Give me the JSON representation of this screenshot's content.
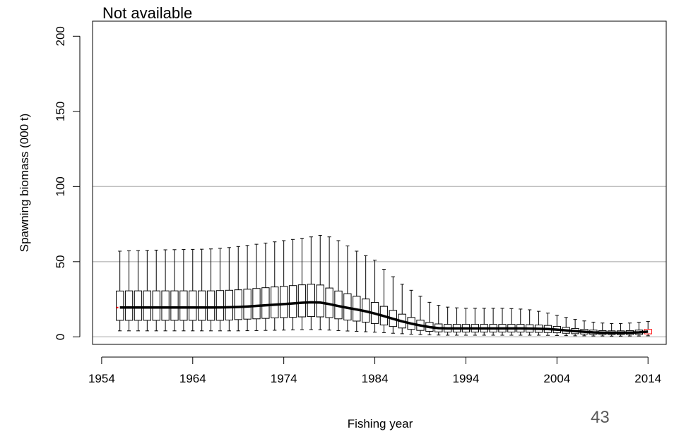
{
  "subtitle": "Not available",
  "page_number": "43",
  "chart_data": {
    "type": "box",
    "xlabel": "Fishing year",
    "ylabel": "Spawning biomass (000 t)",
    "xlim": [
      1953,
      2016
    ],
    "ylim": [
      -5,
      210
    ],
    "x_ticks": [
      1954,
      1964,
      1974,
      1984,
      1994,
      2004,
      2014
    ],
    "y_ticks": [
      0,
      50,
      100,
      150,
      200
    ],
    "reference_lines": [
      0,
      50,
      100
    ],
    "grid": false,
    "colors": {
      "median_line": "#000000",
      "box": "#000000",
      "reference_line": "#bebebe",
      "first_median_tick": "#ff0000",
      "last_box": "#ff0000"
    },
    "series": [
      {
        "x": [
          1956,
          1957,
          1958,
          1959,
          1960,
          1961,
          1962,
          1963,
          1964,
          1965,
          1966,
          1967,
          1968,
          1969,
          1970,
          1971,
          1972,
          1973,
          1974,
          1975,
          1976,
          1977,
          1978,
          1979,
          1980,
          1981,
          1982,
          1983,
          1984,
          1985,
          1986,
          1987,
          1988,
          1989,
          1990,
          1991,
          1992,
          1993,
          1994,
          1995,
          1996,
          1997,
          1998,
          1999,
          2000,
          2001,
          2002,
          2003,
          2004,
          2005,
          2006,
          2007,
          2008,
          2009,
          2010,
          2011,
          2012,
          2013,
          2014
        ],
        "median": [
          19.5,
          19.5,
          19.5,
          19.5,
          19.5,
          19.5,
          19.5,
          19.5,
          19.5,
          19.5,
          19.5,
          19.6,
          19.7,
          19.9,
          20.2,
          20.6,
          21.0,
          21.4,
          21.8,
          22.2,
          22.7,
          23.0,
          22.8,
          21.8,
          20.5,
          19.3,
          18.2,
          17.0,
          15.5,
          13.8,
          12.0,
          10.3,
          8.8,
          7.6,
          6.5,
          5.8,
          5.6,
          5.6,
          5.6,
          5.6,
          5.6,
          5.6,
          5.6,
          5.6,
          5.6,
          5.5,
          5.4,
          5.2,
          4.8,
          4.3,
          3.8,
          3.4,
          3.0,
          2.8,
          2.7,
          2.7,
          2.8,
          3.0,
          3.5
        ],
        "q1": [
          11,
          11,
          11,
          11,
          11,
          11,
          11,
          11,
          11,
          11,
          11,
          11,
          11.2,
          11.5,
          11.8,
          12,
          12.3,
          12.6,
          12.8,
          13,
          13.3,
          13.5,
          13.3,
          12.8,
          12,
          11.2,
          10.5,
          9.8,
          8.9,
          7.9,
          6.9,
          5.9,
          5.0,
          4.3,
          3.7,
          3.3,
          3.2,
          3.2,
          3.2,
          3.2,
          3.2,
          3.2,
          3.2,
          3.2,
          3.2,
          3.1,
          3.0,
          2.9,
          2.7,
          2.4,
          2.1,
          1.9,
          1.7,
          1.6,
          1.5,
          1.5,
          1.6,
          1.7,
          2.0
        ],
        "q3": [
          30.5,
          30.6,
          30.6,
          30.6,
          30.6,
          30.6,
          30.6,
          30.6,
          30.6,
          30.6,
          30.6,
          30.8,
          31,
          31.3,
          31.7,
          32.2,
          32.7,
          33.2,
          33.6,
          34.1,
          34.6,
          35,
          34.5,
          32.5,
          30.5,
          28.7,
          27.0,
          25.2,
          22.9,
          20.3,
          17.6,
          15.1,
          12.9,
          11.1,
          9.6,
          8.6,
          8.3,
          8.3,
          8.3,
          8.3,
          8.3,
          8.3,
          8.3,
          8.3,
          8.3,
          8.1,
          7.9,
          7.6,
          7.0,
          6.3,
          5.6,
          5.0,
          4.5,
          4.2,
          4.0,
          4.0,
          4.2,
          4.5,
          5.0
        ],
        "lower": [
          4,
          4,
          4,
          4,
          4,
          4,
          4,
          4,
          4,
          4,
          4,
          4,
          4,
          4,
          4.1,
          4.2,
          4.3,
          4.4,
          4.5,
          4.6,
          4.7,
          4.8,
          4.7,
          4.5,
          4.2,
          3.9,
          3.7,
          3.4,
          3.1,
          2.8,
          2.4,
          2.1,
          1.8,
          1.5,
          1.3,
          1.2,
          1.1,
          1.1,
          1.1,
          1.1,
          1.1,
          1.1,
          1.1,
          1.1,
          1.1,
          1.1,
          1.1,
          1.0,
          0.9,
          0.8,
          0.7,
          0.7,
          0.6,
          0.6,
          0.5,
          0.5,
          0.6,
          0.6,
          0.7
        ],
        "upper": [
          57,
          57.3,
          57.4,
          57.5,
          57.7,
          57.9,
          58,
          58.1,
          58.2,
          58.3,
          58.5,
          58.9,
          59.4,
          60.1,
          60.8,
          61.6,
          62.4,
          63.2,
          64,
          64.8,
          65.6,
          66.5,
          67.5,
          66.5,
          64,
          60.5,
          57,
          54,
          51,
          45,
          40,
          35,
          31,
          27,
          23,
          21,
          19.8,
          19.3,
          19,
          19,
          19,
          19,
          19,
          18.8,
          18.5,
          18,
          17,
          15.8,
          14.3,
          12.9,
          11.6,
          10.6,
          9.8,
          9.2,
          8.9,
          8.9,
          9.2,
          9.7,
          10.2
        ]
      }
    ]
  }
}
